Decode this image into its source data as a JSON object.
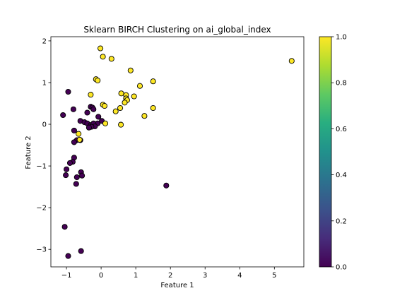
{
  "chart_data": {
    "type": "scatter",
    "title": "Sklearn BIRCH Clustering on ai_global_index",
    "xlabel": "Feature 1",
    "ylabel": "Feature 2",
    "xlim": [
      -1.45,
      5.85
    ],
    "ylim": [
      -3.42,
      2.1
    ],
    "xticks": [
      -1,
      0,
      1,
      2,
      3,
      4,
      5
    ],
    "yticks": [
      -3,
      -2,
      -1,
      0,
      1,
      2
    ],
    "grid": false,
    "colorbar": {
      "range": [
        0.0,
        1.0
      ],
      "ticks": [
        "0.0",
        "0.2",
        "0.4",
        "0.6",
        "0.8",
        "1.0"
      ],
      "colormap": "viridis"
    },
    "series": [
      {
        "cluster": 0,
        "color": "#440154",
        "points": [
          [
            -0.95,
            0.78
          ],
          [
            -1.1,
            0.22
          ],
          [
            -0.8,
            0.36
          ],
          [
            -0.4,
            0.28
          ],
          [
            -0.6,
            0.08
          ],
          [
            -0.3,
            0.42
          ],
          [
            -0.25,
            0.4
          ],
          [
            -0.22,
            0.36
          ],
          [
            -0.08,
            0.18
          ],
          [
            -0.1,
            0.02
          ],
          [
            0.02,
            0.08
          ],
          [
            -0.48,
            0.05
          ],
          [
            -0.4,
            0.02
          ],
          [
            -0.3,
            -0.02
          ],
          [
            -0.22,
            0.02
          ],
          [
            -0.18,
            -0.05
          ],
          [
            -0.28,
            -0.06
          ],
          [
            -0.35,
            -0.08
          ],
          [
            -0.78,
            -0.15
          ],
          [
            -0.6,
            -0.38
          ],
          [
            -0.7,
            -0.38
          ],
          [
            -0.78,
            -0.43
          ],
          [
            -0.78,
            -0.8
          ],
          [
            -0.82,
            -0.9
          ],
          [
            -0.9,
            -0.93
          ],
          [
            -1.0,
            -1.08
          ],
          [
            -1.02,
            -1.22
          ],
          [
            -0.58,
            -1.15
          ],
          [
            -0.55,
            -1.23
          ],
          [
            -0.7,
            -1.27
          ],
          [
            -0.72,
            -1.43
          ],
          [
            -1.05,
            -2.46
          ],
          [
            -0.95,
            -3.16
          ],
          [
            -0.58,
            -3.04
          ],
          [
            1.88,
            -1.47
          ]
        ]
      },
      {
        "cluster": 1,
        "color": "#fde725",
        "points": [
          [
            -0.02,
            1.82
          ],
          [
            0.05,
            1.62
          ],
          [
            0.3,
            1.57
          ],
          [
            0.85,
            1.29
          ],
          [
            5.5,
            1.52
          ],
          [
            -0.15,
            1.08
          ],
          [
            -0.1,
            1.05
          ],
          [
            1.5,
            1.03
          ],
          [
            1.12,
            0.92
          ],
          [
            -0.3,
            0.71
          ],
          [
            0.58,
            0.74
          ],
          [
            0.72,
            0.7
          ],
          [
            0.95,
            0.67
          ],
          [
            0.72,
            0.62
          ],
          [
            0.75,
            0.58
          ],
          [
            0.68,
            0.52
          ],
          [
            0.05,
            0.47
          ],
          [
            0.1,
            0.44
          ],
          [
            0.55,
            0.39
          ],
          [
            0.42,
            0.31
          ],
          [
            1.5,
            0.39
          ],
          [
            1.25,
            0.2
          ],
          [
            0.12,
            0.02
          ],
          [
            0.57,
            -0.01
          ],
          [
            -0.65,
            -0.23
          ],
          [
            -0.62,
            -0.37
          ]
        ]
      }
    ]
  }
}
